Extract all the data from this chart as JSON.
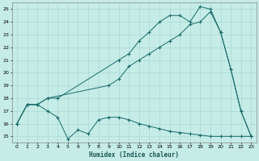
{
  "xlabel": "Humidex (Indice chaleur)",
  "xlim": [
    -0.5,
    23.5
  ],
  "ylim": [
    14.5,
    25.5
  ],
  "xticks": [
    0,
    1,
    2,
    3,
    4,
    5,
    6,
    7,
    8,
    9,
    10,
    11,
    12,
    13,
    14,
    15,
    16,
    17,
    18,
    19,
    20,
    21,
    22,
    23
  ],
  "yticks": [
    15,
    16,
    17,
    18,
    19,
    20,
    21,
    22,
    23,
    24,
    25
  ],
  "bg_color": "#c5ece7",
  "line_color": "#1a6b6b",
  "grid_color": "#aad8d3",
  "line1_x": [
    0,
    1,
    2,
    3,
    4,
    10,
    11,
    12,
    13,
    14,
    15,
    16,
    17,
    18,
    19,
    20,
    21,
    22,
    23
  ],
  "line1_y": [
    16,
    17.5,
    17.5,
    18,
    18,
    21,
    21.5,
    22.5,
    23.2,
    24.0,
    24.5,
    24.5,
    24.0,
    25.2,
    25.0,
    23.2,
    20.3,
    17.0,
    15.0
  ],
  "line2_x": [
    0,
    1,
    2,
    3,
    9,
    10,
    11,
    12,
    13,
    14,
    15,
    16,
    17,
    18,
    19,
    20,
    21,
    22,
    23
  ],
  "line2_y": [
    16,
    17.5,
    17.5,
    18,
    19.0,
    19.5,
    20.5,
    21.0,
    21.5,
    22.0,
    22.5,
    23.0,
    23.8,
    24.0,
    24.8,
    23.2,
    20.3,
    17.0,
    15.0
  ],
  "line3_x": [
    0,
    1,
    2,
    3,
    4,
    5,
    6,
    7,
    8,
    9,
    10,
    11,
    12,
    13,
    14,
    15,
    16,
    17,
    18,
    19,
    20,
    21,
    22,
    23
  ],
  "line3_y": [
    16,
    17.5,
    17.5,
    17.0,
    16.5,
    14.8,
    15.5,
    15.2,
    16.3,
    16.5,
    16.5,
    16.3,
    16.0,
    15.8,
    15.6,
    15.4,
    15.3,
    15.2,
    15.1,
    15.0,
    15.0,
    15.0,
    15.0,
    15.0
  ]
}
